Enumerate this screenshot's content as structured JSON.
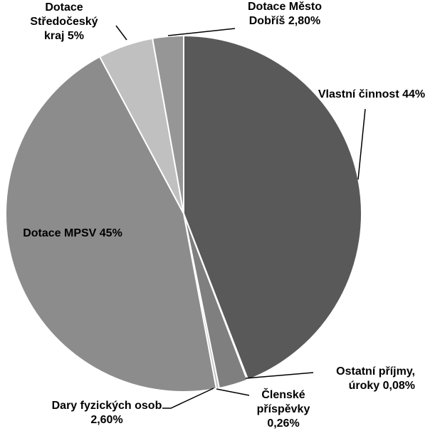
{
  "chart_data": {
    "type": "pie",
    "categories": [
      "Vlastní činnost",
      "Ostatní příjmy, úroky",
      "Dary fyzických osob",
      "Členské příspěvky",
      "Dotace MPSV",
      "Dotace Středočeský kraj",
      "Dotace Město Dobříš"
    ],
    "values": [
      44,
      0.08,
      2.6,
      0.26,
      45,
      5,
      2.8
    ],
    "value_labels": [
      "44%",
      "0,08%",
      "2,60%",
      "0,26%",
      "45%",
      "5%",
      "2,80%"
    ],
    "colors": [
      "#595959",
      "#d9d9d9",
      "#7f7f7f",
      "#bfbfbf",
      "#8c8c8c",
      "#c0c0c0",
      "#969696"
    ]
  }
}
